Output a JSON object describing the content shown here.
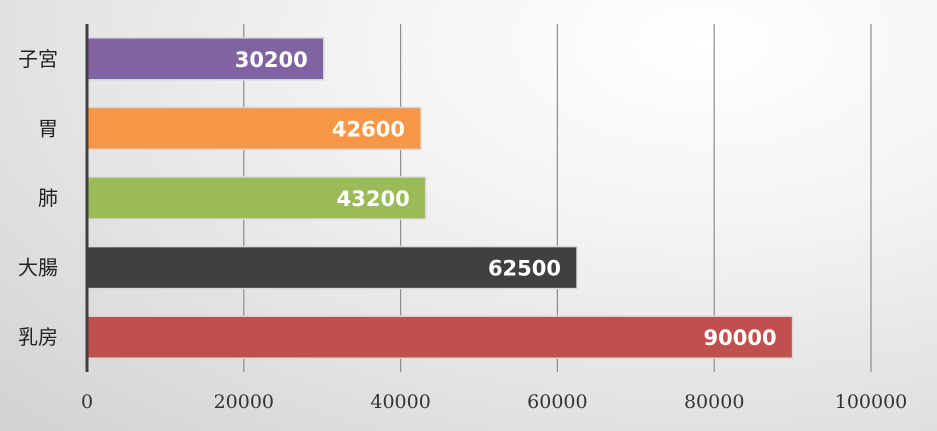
{
  "chart_data": {
    "type": "bar",
    "orientation": "horizontal",
    "title": "",
    "xlabel": "",
    "ylabel": "",
    "categories": [
      "子宮",
      "胃",
      "肺",
      "大腸",
      "乳房"
    ],
    "values": [
      30200,
      42600,
      43200,
      62500,
      90000
    ],
    "value_labels": [
      "30200",
      "42600",
      "43200",
      "62500",
      "90000"
    ],
    "colors": [
      "#8064a2",
      "#f79646",
      "#9bbb59",
      "#404040",
      "#c0504d"
    ],
    "xlim": [
      0,
      100000
    ],
    "x_ticks": [
      0,
      20000,
      40000,
      60000,
      80000,
      100000
    ],
    "x_tick_labels": [
      "0",
      "20000",
      "40000",
      "60000",
      "80000",
      "100000"
    ],
    "grid": "vertical",
    "legend": "none"
  }
}
